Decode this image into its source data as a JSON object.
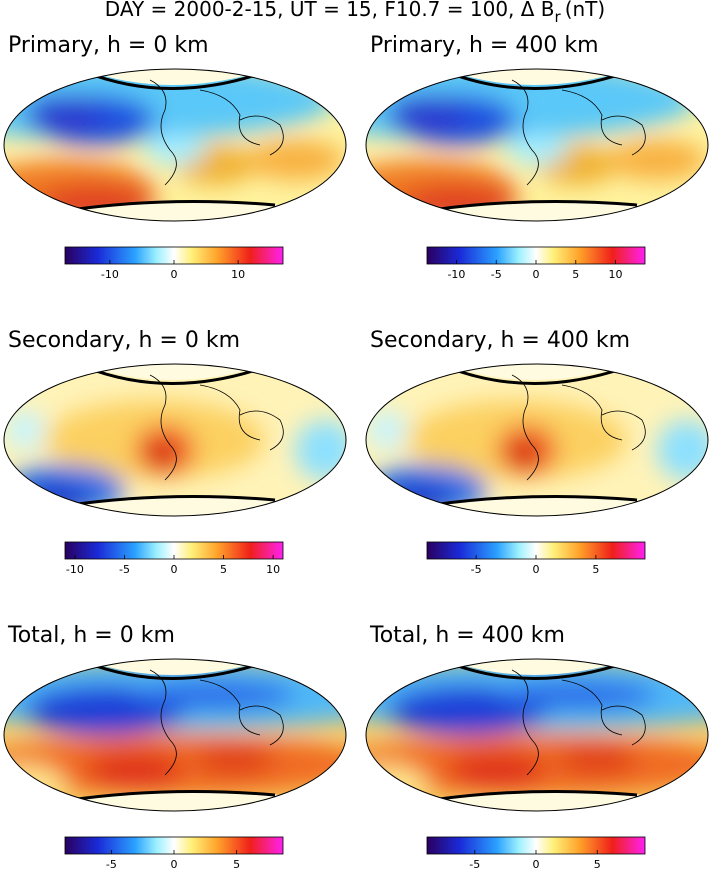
{
  "title": {
    "main": "DAY = 2000-2-15, UT = 15, F10.7 = 100, Δ B",
    "subscript": "r",
    "unit": "(nT)"
  },
  "panels": [
    {
      "title": "Primary, h = 0 km",
      "colorbar": {
        "lim": [
          -17,
          17
        ],
        "ticks": [
          -10,
          0,
          10
        ]
      }
    },
    {
      "title": "Primary, h = 400 km",
      "colorbar": {
        "lim": [
          -13.7,
          13.7
        ],
        "ticks": [
          -10,
          -5,
          0,
          5,
          10
        ]
      }
    },
    {
      "title": "Secondary, h = 0 km",
      "colorbar": {
        "lim": [
          -11,
          11
        ],
        "ticks": [
          -10,
          -5,
          0,
          5,
          10
        ]
      }
    },
    {
      "title": "Secondary, h = 400 km",
      "colorbar": {
        "lim": [
          -9.1,
          9.1
        ],
        "ticks": [
          -5,
          0,
          5
        ]
      }
    },
    {
      "title": "Total, h = 0 km",
      "colorbar": {
        "lim": [
          -8.7,
          8.7
        ],
        "ticks": [
          -5,
          0,
          5
        ]
      }
    },
    {
      "title": "Total, h = 400 km",
      "colorbar": {
        "lim": [
          -8.9,
          8.9
        ],
        "ticks": [
          -5,
          0,
          5
        ]
      }
    }
  ]
}
